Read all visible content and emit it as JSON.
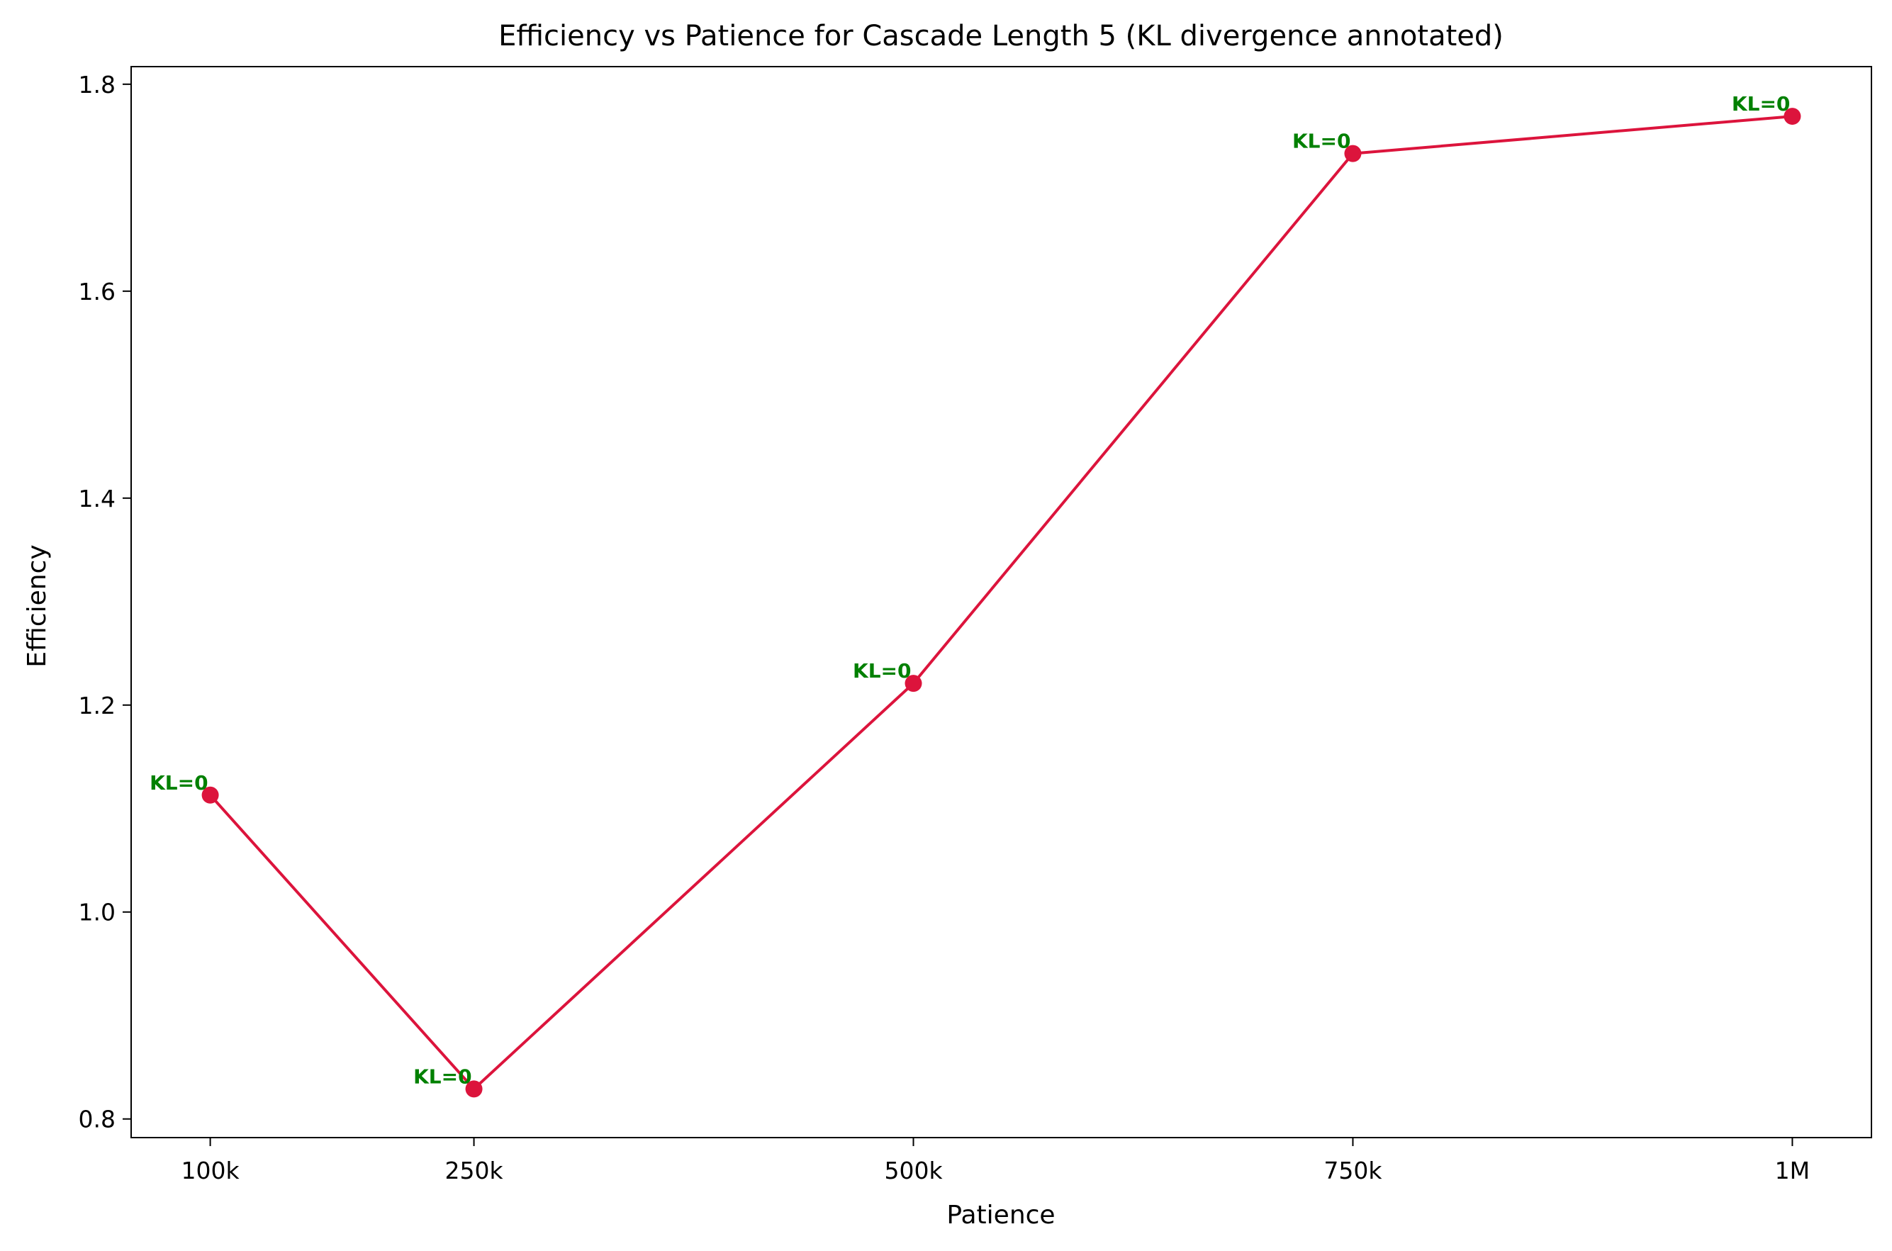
{
  "chart_data": {
    "type": "line",
    "title": "Efficiency vs Patience for Cascade Length 5 (KL divergence annotated)",
    "xlabel": "Patience",
    "ylabel": "Efficiency",
    "x": [
      100000,
      250000,
      500000,
      750000,
      1000000
    ],
    "x_tick_labels": [
      "100k",
      "250k",
      "500k",
      "750k",
      "1M"
    ],
    "xlim": [
      55000,
      1045000
    ],
    "series": [
      {
        "name": "Efficiency",
        "values": [
          1.113,
          0.829,
          1.221,
          1.733,
          1.769
        ],
        "annotations": [
          "KL=0",
          "KL=0",
          "KL=0",
          "KL=0",
          "KL=0"
        ]
      }
    ],
    "y_ticks": [
      0.8,
      1.0,
      1.2,
      1.4,
      1.6,
      1.8
    ],
    "y_tick_labels": [
      "0.8",
      "1.0",
      "1.2",
      "1.4",
      "1.6",
      "1.8"
    ],
    "ylim": [
      0.782,
      1.817
    ],
    "grid": false,
    "colors": {
      "line": "#dc143c",
      "marker": "#dc143c",
      "annotation": "#008000"
    }
  }
}
